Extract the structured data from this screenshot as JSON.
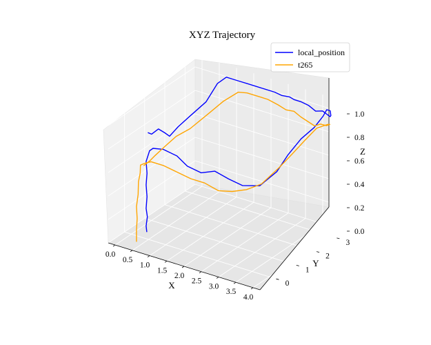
{
  "chart_data": {
    "type": "line",
    "projection": "3d",
    "title": "XYZ Trajectory",
    "xlabel": "X",
    "ylabel": "Y",
    "zlabel": "Z",
    "xlim": [
      -0.2,
      4.2
    ],
    "ylim": [
      -0.8,
      3.5
    ],
    "zlim": [
      0.0,
      1.1
    ],
    "x_ticks": [
      "0.0",
      "0.5",
      "1.0",
      "1.5",
      "2.0",
      "2.5",
      "3.0",
      "3.5",
      "4.0"
    ],
    "y_ticks": [
      "0",
      "1",
      "2",
      "3"
    ],
    "z_ticks": [
      "0.0",
      "0.2",
      "0.4",
      "0.6",
      "0.8",
      "1.0"
    ],
    "grid": true,
    "legend_position": "top-right",
    "series": [
      {
        "name": "local_position",
        "color": "#0000ff",
        "x": [
          0.42,
          0.4,
          0.43,
          0.4,
          0.42,
          0.4,
          0.42,
          0.4,
          0.5,
          0.6,
          0.9,
          1.3,
          1.6,
          2.0,
          2.4,
          2.8,
          3.2,
          3.55,
          3.75,
          3.72,
          3.75,
          3.78,
          3.8,
          3.85,
          3.95,
          4.0,
          3.95,
          3.85,
          3.7,
          3.5,
          3.3,
          3.1,
          2.9,
          2.8,
          2.6,
          2.4,
          2.0,
          1.6,
          1.3,
          1.0,
          0.8,
          0.7,
          0.62,
          0.6,
          0.64,
          0.62,
          0.55,
          0.5,
          0.45
        ],
        "y": [
          0.05,
          0.05,
          0.06,
          0.05,
          0.06,
          0.05,
          0.06,
          0.05,
          0.05,
          0.05,
          0.04,
          0.04,
          0.04,
          0.04,
          0.04,
          0.04,
          0.04,
          0.3,
          0.8,
          1.4,
          2.0,
          2.6,
          3.0,
          3.1,
          3.1,
          3.05,
          3.1,
          3.15,
          3.15,
          3.15,
          3.15,
          3.1,
          3.1,
          3.05,
          3.0,
          3.0,
          3.0,
          3.0,
          3.0,
          3.0,
          2.9,
          2.5,
          1.9,
          1.3,
          0.8,
          0.6,
          0.4,
          0.15,
          0.05
        ],
        "z": [
          0.05,
          0.1,
          0.18,
          0.25,
          0.35,
          0.45,
          0.55,
          0.65,
          0.75,
          0.78,
          0.8,
          0.78,
          0.72,
          0.7,
          0.75,
          0.72,
          0.7,
          0.7,
          0.78,
          0.85,
          0.92,
          0.95,
          1.0,
          1.05,
          1.05,
          1.02,
          1.0,
          1.0,
          1.02,
          1.0,
          1.03,
          1.05,
          1.05,
          1.07,
          1.07,
          1.08,
          1.08,
          1.08,
          1.08,
          1.08,
          1.02,
          0.9,
          0.85,
          0.82,
          0.8,
          0.85,
          0.9,
          0.88,
          0.9
        ]
      },
      {
        "name": "t265",
        "color": "#ffa500",
        "x": [
          0.5,
          0.5,
          0.52,
          0.5,
          0.52,
          0.5,
          0.52,
          0.5,
          0.6,
          0.75,
          1.1,
          1.5,
          1.9,
          2.3,
          2.7,
          3.1,
          3.4,
          3.6,
          3.75,
          3.78,
          3.8,
          3.85,
          3.95,
          4.0,
          3.9,
          3.7,
          3.5,
          3.3,
          3.1,
          2.9,
          2.7,
          2.5,
          2.2,
          1.9,
          1.6,
          1.4,
          1.2,
          1.1,
          1.0,
          0.95,
          0.85,
          0.75,
          0.7,
          0.65
        ],
        "y": [
          -0.6,
          -0.6,
          -0.6,
          -0.6,
          -0.55,
          -0.5,
          -0.45,
          -0.4,
          -0.35,
          -0.3,
          -0.3,
          -0.3,
          -0.3,
          -0.3,
          -0.3,
          -0.3,
          -0.1,
          0.3,
          0.9,
          1.5,
          2.1,
          2.6,
          2.95,
          3.0,
          3.0,
          3.05,
          3.1,
          3.1,
          3.1,
          3.1,
          3.05,
          3.0,
          3.0,
          3.0,
          3.0,
          2.9,
          2.5,
          1.9,
          1.2,
          0.6,
          0.2,
          -0.1,
          -0.3,
          -0.5
        ],
        "z": [
          0.05,
          0.15,
          0.25,
          0.35,
          0.45,
          0.55,
          0.62,
          0.68,
          0.7,
          0.72,
          0.72,
          0.7,
          0.68,
          0.68,
          0.65,
          0.68,
          0.7,
          0.72,
          0.8,
          0.85,
          0.9,
          0.95,
          0.95,
          0.95,
          0.93,
          0.92,
          0.88,
          0.9,
          0.92,
          0.95,
          0.95,
          0.98,
          1.0,
          1.0,
          1.0,
          1.0,
          0.95,
          0.9,
          0.85,
          0.85,
          0.8,
          0.75,
          0.72,
          0.7
        ]
      }
    ]
  }
}
